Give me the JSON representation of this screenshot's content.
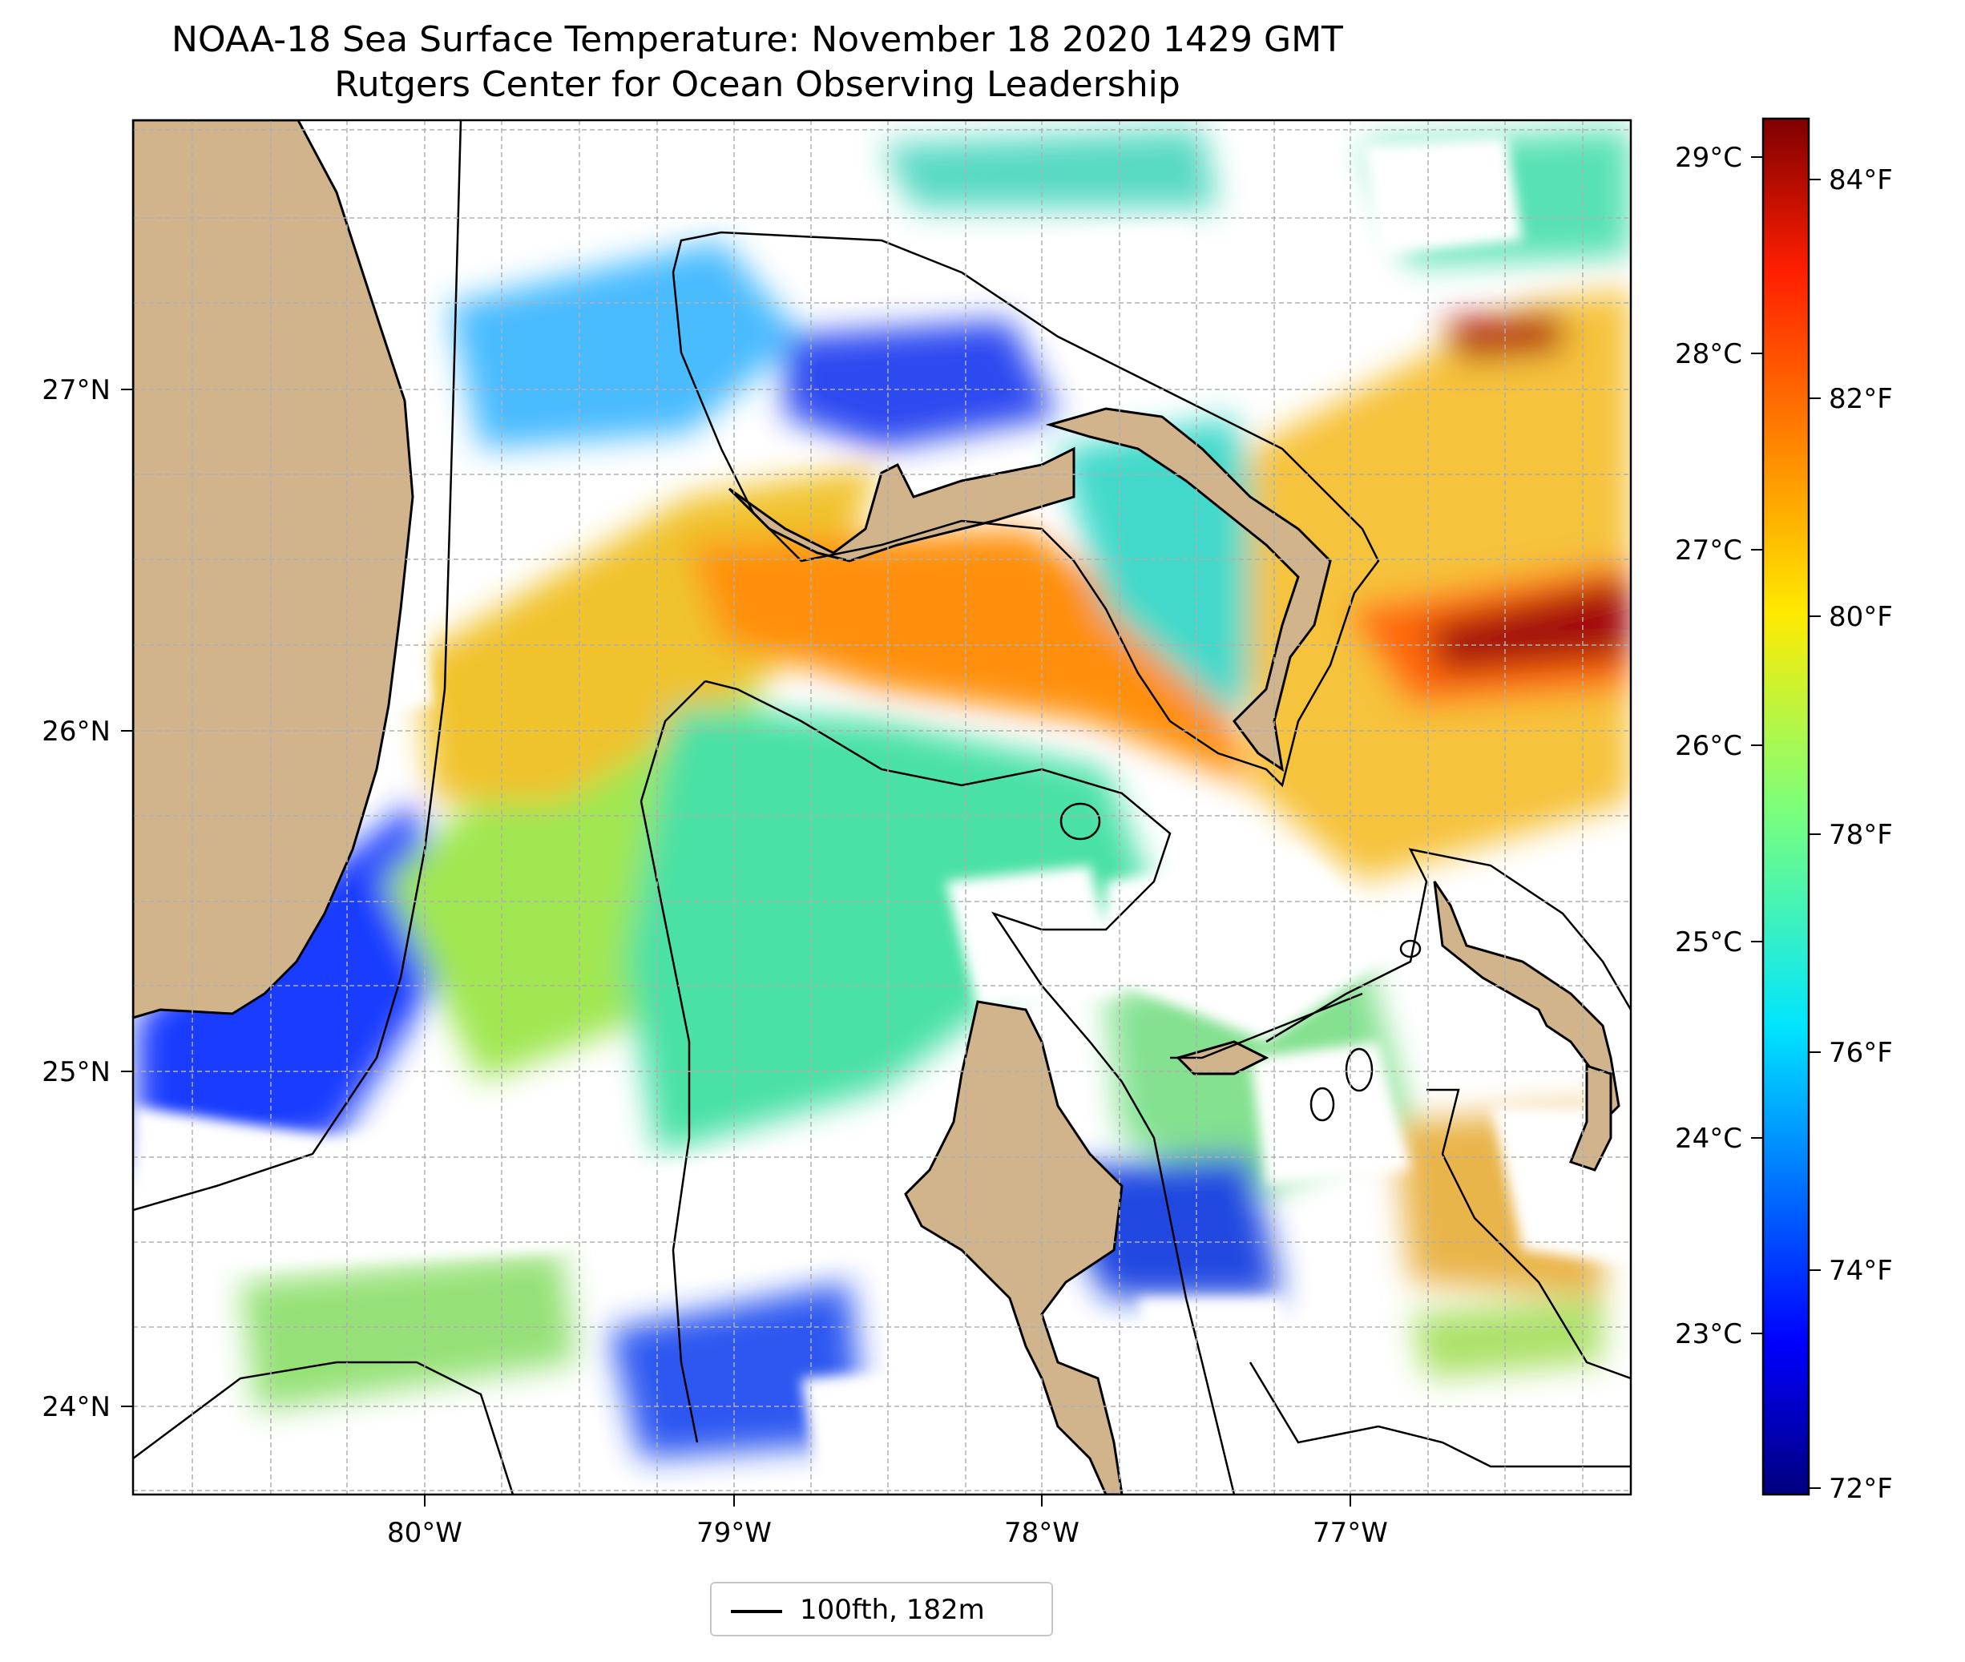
{
  "title": {
    "line1": "NOAA-18 Sea Surface Temperature: November 18 2020 1429 GMT",
    "line2": "Rutgers Center for Ocean Observing Leadership"
  },
  "map": {
    "lon_labels": [
      "80°W",
      "79°W",
      "78°W",
      "77°W"
    ],
    "lat_labels": [
      "27°N",
      "26°N",
      "25°N",
      "24°N"
    ],
    "lon_range": [
      -80.95,
      -76.1
    ],
    "lat_range": [
      23.75,
      27.8
    ],
    "grid": true,
    "land_color": "#d2b48c",
    "contour_label": "100fth, 182m"
  },
  "colorbar": {
    "colormap": "jet",
    "celsius_labels": [
      "29°C",
      "28°C",
      "27°C",
      "26°C",
      "25°C",
      "24°C",
      "23°C"
    ],
    "fahrenheit_labels": [
      "84°F",
      "82°F",
      "80°F",
      "78°F",
      "76°F",
      "74°F",
      "72°F"
    ],
    "range_f": [
      71.9,
      84.6
    ],
    "range_c": [
      22.2,
      29.2
    ]
  },
  "legend": {
    "label": "100fth, 182m"
  }
}
